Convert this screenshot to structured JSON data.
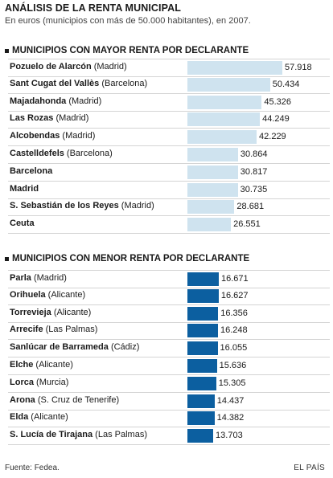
{
  "title": "ANÁLISIS DE LA RENTA MUNICIPAL",
  "subtitle": "En euros (municipios con más de 50.000 habitantes), en 2007.",
  "source": "Fuente: Fedea.",
  "publisher": "EL PAÍS",
  "colors": {
    "top_bar": "#cfe3ef",
    "bottom_bar": "#0c5fa0"
  },
  "chart_data": [
    {
      "type": "bar",
      "orientation": "horizontal",
      "title": "MUNICIPIOS CON MAYOR RENTA POR DECLARANTE",
      "categories": [
        {
          "name": "Pozuelo de Alarcón",
          "province": "(Madrid)"
        },
        {
          "name": "Sant Cugat del Vallès",
          "province": "(Barcelona)"
        },
        {
          "name": "Majadahonda",
          "province": "(Madrid)"
        },
        {
          "name": "Las Rozas",
          "province": "(Madrid)"
        },
        {
          "name": "Alcobendas",
          "province": "(Madrid)"
        },
        {
          "name": "Castelldefels",
          "province": "(Barcelona)"
        },
        {
          "name": "Barcelona",
          "province": ""
        },
        {
          "name": "Madrid",
          "province": ""
        },
        {
          "name": "S. Sebastián de los Reyes",
          "province": "(Madrid)"
        },
        {
          "name": "Ceuta",
          "province": ""
        }
      ],
      "values": [
        57918,
        50434,
        45326,
        44249,
        42229,
        30864,
        30817,
        30735,
        28681,
        26551
      ],
      "value_labels": [
        "57.918",
        "50.434",
        "45.326",
        "44.249",
        "42.229",
        "30.864",
        "30.817",
        "30.735",
        "28.681",
        "26.551"
      ]
    },
    {
      "type": "bar",
      "orientation": "horizontal",
      "title": "MUNICIPIOS CON MENOR RENTA POR DECLARANTE",
      "categories": [
        {
          "name": "Parla",
          "province": "(Madrid)"
        },
        {
          "name": "Orihuela",
          "province": "(Alicante)"
        },
        {
          "name": "Torrevieja",
          "province": "(Alicante)"
        },
        {
          "name": "Arrecife",
          "province": "(Las Palmas)"
        },
        {
          "name": "Sanlúcar de Barrameda",
          "province": "(Cádiz)"
        },
        {
          "name": "Elche",
          "province": "(Alicante)"
        },
        {
          "name": "Lorca",
          "province": "(Murcia)"
        },
        {
          "name": "Arona",
          "province": "(S. Cruz de Tenerife)"
        },
        {
          "name": "Elda",
          "province": "(Alicante)"
        },
        {
          "name": "S. Lucía de Tirajana",
          "province": "(Las Palmas)"
        }
      ],
      "values": [
        16671,
        16627,
        16356,
        16248,
        16055,
        15636,
        15305,
        14437,
        14382,
        13703
      ],
      "value_labels": [
        "16.671",
        "16.627",
        "16.356",
        "16.248",
        "16.055",
        "15.636",
        "15.305",
        "14.437",
        "14.382",
        "13.703"
      ]
    }
  ]
}
